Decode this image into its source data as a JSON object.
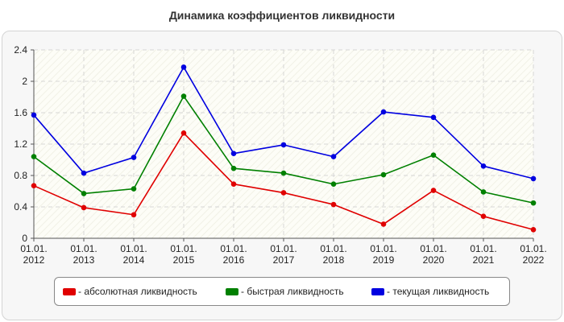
{
  "chart_data": {
    "type": "line",
    "title": "Динамика коэффициентов ликвидности",
    "categories": [
      [
        "01.01.",
        "2012"
      ],
      [
        "01.01.",
        "2013"
      ],
      [
        "01.01.",
        "2014"
      ],
      [
        "01.01.",
        "2015"
      ],
      [
        "01.01.",
        "2016"
      ],
      [
        "01.01.",
        "2017"
      ],
      [
        "01.01.",
        "2018"
      ],
      [
        "01.01.",
        "2019"
      ],
      [
        "01.01.",
        "2020"
      ],
      [
        "01.01.",
        "2021"
      ],
      [
        "01.01.",
        "2022"
      ]
    ],
    "ylim": [
      0,
      2.4
    ],
    "yticks": [
      "0",
      "0.4",
      "0.8",
      "1.2",
      "1.6",
      "2",
      "2.4"
    ],
    "grid": true,
    "legend_position": "bottom",
    "series": [
      {
        "name": "- абсолютная ликвидность",
        "color": "#e00000",
        "values": [
          0.67,
          0.39,
          0.3,
          1.34,
          0.69,
          0.58,
          0.43,
          0.18,
          0.61,
          0.28,
          0.11
        ]
      },
      {
        "name": "- быстрая ликвидность",
        "color": "#008000",
        "values": [
          1.04,
          0.57,
          0.63,
          1.81,
          0.89,
          0.83,
          0.69,
          0.81,
          1.06,
          0.59,
          0.45
        ]
      },
      {
        "name": "- текущая ликвидность",
        "color": "#0000e0",
        "values": [
          1.57,
          0.83,
          1.03,
          2.18,
          1.08,
          1.19,
          1.04,
          1.61,
          1.54,
          0.92,
          0.76
        ]
      }
    ]
  }
}
